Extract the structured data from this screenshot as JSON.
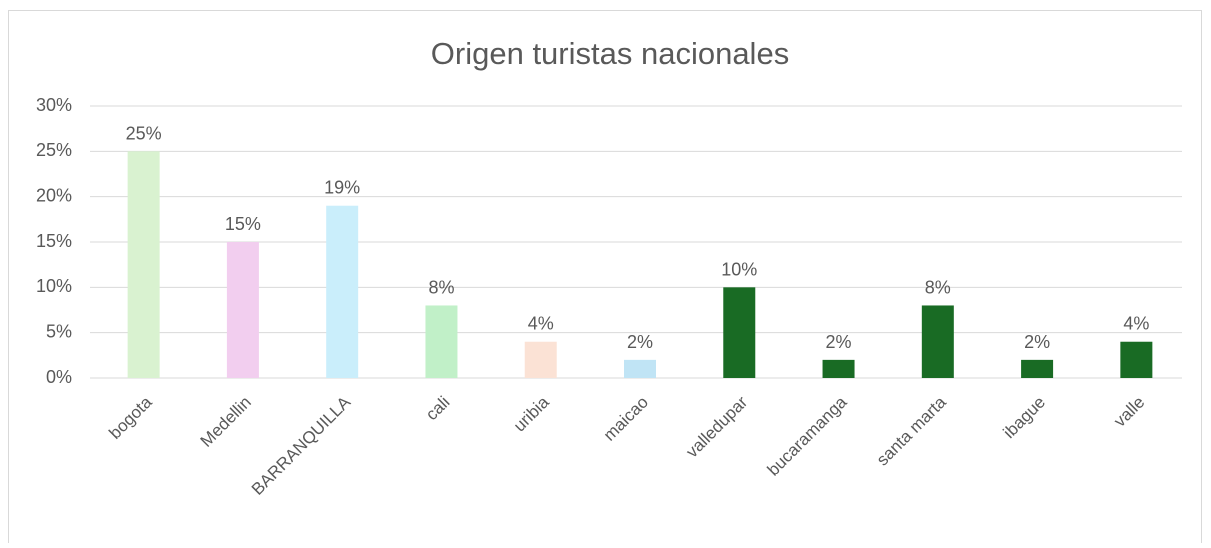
{
  "chart_data": {
    "type": "bar",
    "title": "Origen turistas nacionales",
    "categories": [
      "bogota",
      "Medellin",
      "BARRANQUILLA",
      "cali",
      "uribia",
      "maicao",
      "valledupar",
      "bucaramanga",
      "santa marta",
      "ibague",
      "valle"
    ],
    "values": [
      25,
      15,
      19,
      8,
      4,
      2,
      10,
      2,
      8,
      2,
      4
    ],
    "value_labels": [
      "25%",
      "15%",
      "19%",
      "8%",
      "4%",
      "2%",
      "10%",
      "2%",
      "8%",
      "2%",
      "4%"
    ],
    "colors": [
      "#d9f2d0",
      "#f2ceef",
      "#caeefb",
      "#c1f0c8",
      "#fbe2d5",
      "#c0e4f5",
      "#196b24",
      "#196b24",
      "#196b24",
      "#196b24",
      "#196b24"
    ],
    "ylim": [
      0,
      30
    ],
    "yticks": [
      {
        "value": 0,
        "label": "0%"
      },
      {
        "value": 5,
        "label": "5%"
      },
      {
        "value": 10,
        "label": "10%"
      },
      {
        "value": 15,
        "label": "15%"
      },
      {
        "value": 20,
        "label": "20%"
      },
      {
        "value": 25,
        "label": "25%"
      },
      {
        "value": 30,
        "label": "30%"
      }
    ],
    "grid": true
  }
}
